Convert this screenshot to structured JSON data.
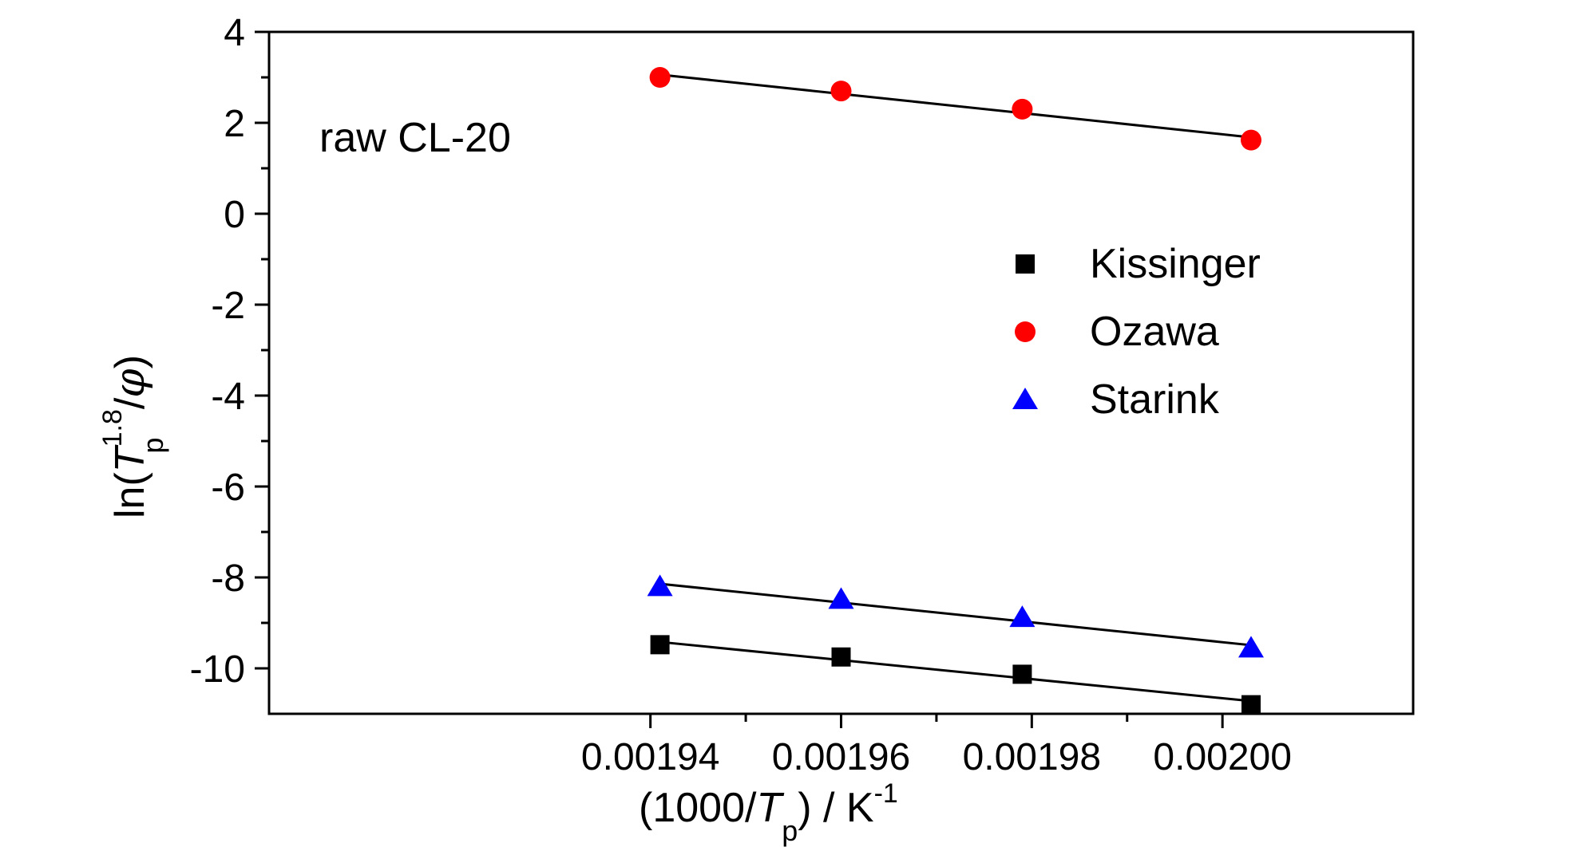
{
  "chart_data": {
    "type": "scatter",
    "title": "",
    "annotation": "raw CL-20",
    "xlabel": {
      "prefix": "(1000/",
      "var": "T",
      "sub": "p",
      "suffix": ") / K",
      "sup": "-1"
    },
    "ylabel": {
      "prefix": "ln(",
      "var": "T",
      "sub": "p",
      "sup": "1.8",
      "slash": "/",
      "phi": "φ",
      "suffix": ")"
    },
    "xlim": [
      0.0019,
      0.00202
    ],
    "ylim": [
      -11,
      4
    ],
    "x_ticks": [
      0.00194,
      0.00196,
      0.00198,
      0.002
    ],
    "x_tick_labels": [
      "0.00194",
      "0.00196",
      "0.00198",
      "0.00200"
    ],
    "y_ticks": [
      4,
      2,
      0,
      -2,
      -4,
      -6,
      -8,
      -10
    ],
    "y_tick_labels": [
      "4",
      "2",
      "0",
      "-2",
      "-4",
      "-6",
      "-8",
      "-10"
    ],
    "x": [
      0.001941,
      0.00196,
      0.001979,
      0.002003
    ],
    "legend_position": "center-right",
    "series": [
      {
        "name": "Kissinger",
        "marker": "square",
        "color": "#000000",
        "values": [
          -9.48,
          -9.75,
          -10.13,
          -10.8
        ],
        "fit": [
          [
            0.001941,
            -9.42
          ],
          [
            0.002003,
            -10.72
          ]
        ]
      },
      {
        "name": "Ozawa",
        "marker": "circle",
        "color": "#ff0000",
        "values": [
          3.0,
          2.7,
          2.3,
          1.62
        ],
        "fit": [
          [
            0.001941,
            3.06
          ],
          [
            0.002003,
            1.68
          ]
        ]
      },
      {
        "name": "Starink",
        "marker": "triangle",
        "color": "#0000ff",
        "values": [
          -8.2,
          -8.48,
          -8.88,
          -9.55
        ],
        "fit": [
          [
            0.001941,
            -8.14
          ],
          [
            0.002003,
            -9.49
          ]
        ]
      }
    ],
    "fit_line_color": "#000000"
  }
}
